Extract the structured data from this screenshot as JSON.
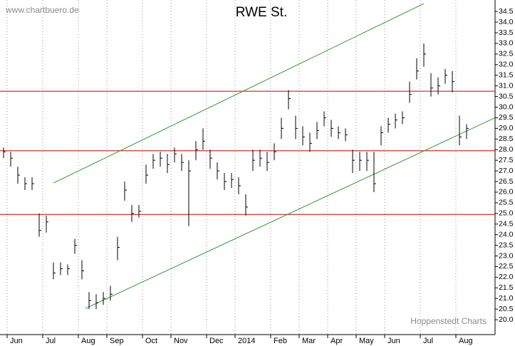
{
  "chart_data": {
    "type": "ohlc",
    "title": "RWE St.",
    "source": "www.chartbuero.de",
    "credit": "Hoppenstedt Charts",
    "color": "#000000",
    "categories": [
      null,
      "Jun",
      null,
      null,
      null,
      null,
      "Jul",
      null,
      null,
      null,
      null,
      "Aug",
      null,
      null,
      null,
      "Sep",
      null,
      null,
      null,
      null,
      "Oct",
      null,
      null,
      null,
      "Nov",
      null,
      null,
      null,
      null,
      "Dec",
      null,
      null,
      null,
      "2014",
      null,
      null,
      null,
      null,
      "Feb",
      null,
      null,
      null,
      "Mar",
      null,
      null,
      null,
      "Apr",
      null,
      null,
      null,
      "May",
      null,
      null,
      null,
      "Jun",
      null,
      null,
      null,
      null,
      "Jul",
      null,
      null,
      null,
      null,
      "Aug",
      null
    ],
    "high": [
      28.1,
      27.9,
      27.2,
      26.7,
      26.7,
      25.0,
      24.9,
      22.7,
      22.7,
      22.6,
      23.8,
      22.8,
      21.3,
      21.2,
      21.3,
      21.6,
      23.9,
      26.5,
      25.4,
      25.4,
      27.3,
      27.8,
      27.9,
      27.8,
      28.1,
      27.8,
      27.5,
      28.4,
      29.0,
      28.0,
      27.4,
      26.9,
      26.9,
      26.7,
      25.9,
      28.0,
      28.0,
      27.9,
      28.3,
      29.5,
      30.8,
      29.6,
      29.1,
      28.8,
      29.3,
      29.8,
      29.4,
      29.1,
      29.0,
      28.0,
      27.9,
      27.9,
      27.9,
      29.1,
      29.5,
      29.7,
      29.8,
      31.2,
      32.3,
      33.0,
      31.6,
      31.4,
      31.8,
      31.7,
      29.6,
      29.2
    ],
    "low": [
      27.6,
      27.2,
      26.4,
      26.1,
      26.1,
      23.9,
      24.1,
      21.9,
      22.1,
      22.1,
      23.1,
      21.9,
      20.5,
      20.5,
      20.7,
      20.9,
      22.8,
      25.6,
      24.6,
      24.8,
      26.4,
      27.1,
      27.2,
      26.9,
      27.4,
      27.0,
      24.4,
      27.5,
      28.0,
      27.1,
      26.6,
      26.1,
      26.2,
      25.9,
      24.9,
      27.0,
      27.2,
      27.0,
      27.5,
      28.5,
      29.9,
      28.5,
      28.2,
      27.9,
      28.5,
      29.1,
      28.6,
      28.5,
      28.4,
      26.9,
      27.0,
      27.0,
      26.0,
      28.2,
      28.8,
      29.0,
      29.2,
      30.2,
      31.3,
      31.9,
      30.5,
      30.6,
      31.1,
      30.7,
      28.2,
      28.5
    ],
    "close": [
      27.9,
      27.6,
      26.8,
      26.4,
      26.4,
      24.2,
      24.6,
      22.2,
      22.4,
      22.4,
      23.5,
      22.3,
      20.9,
      20.8,
      21.0,
      21.2,
      23.4,
      26.1,
      25.0,
      25.1,
      26.8,
      27.5,
      27.6,
      27.3,
      27.8,
      27.4,
      27.0,
      28.0,
      28.4,
      27.6,
      27.0,
      26.5,
      26.6,
      26.3,
      25.3,
      27.5,
      27.6,
      27.4,
      27.9,
      29.0,
      30.4,
      29.0,
      28.6,
      28.3,
      28.9,
      29.5,
      29.0,
      28.8,
      28.7,
      27.5,
      27.5,
      27.5,
      26.4,
      28.8,
      29.2,
      29.4,
      29.5,
      30.6,
      31.7,
      32.5,
      30.9,
      31.0,
      31.5,
      31.2,
      28.6,
      29.0
    ],
    "ylim": [
      19.3,
      35.04
    ],
    "yticks": [
      {
        "value": 20,
        "label": "20.0"
      },
      20.5,
      {
        "value": 21,
        "label": "21.0"
      },
      21.5,
      {
        "value": 22,
        "label": "22.0"
      },
      22.5,
      {
        "value": 23,
        "label": "23.0"
      },
      23.5,
      {
        "value": 24,
        "label": "24.0"
      },
      24.5,
      {
        "value": 25,
        "label": "25.0"
      },
      25.5,
      {
        "value": 26,
        "label": "26.0"
      },
      26.5,
      {
        "value": 27,
        "label": "27.0"
      },
      27.5,
      {
        "value": 28,
        "label": "28.0"
      },
      28.5,
      {
        "value": 29,
        "label": "29.0"
      },
      29.5,
      {
        "value": 30,
        "label": "30.0"
      },
      30.5,
      {
        "value": 31,
        "label": "31.0"
      },
      31.5,
      {
        "value": 32,
        "label": "32.0"
      },
      32.5,
      {
        "value": 33,
        "label": "33.0"
      },
      33.5,
      {
        "value": 34,
        "label": "34.0"
      },
      34.5
    ],
    "grid": true,
    "hlines": [
      {
        "color": "#cc0000",
        "value": 30.75
      },
      {
        "color": "#cc0000",
        "value": 27.95
      },
      {
        "color": "#cc0000",
        "value": 24.95
      }
    ],
    "trendlines": [
      {
        "color": "#2e9b2e",
        "x": [
          7,
          59
        ],
        "y": [
          26.43,
          34.87
        ]
      },
      {
        "color": "#2e9b2e",
        "x": [
          11.5,
          69
        ],
        "y": [
          20.53,
          29.5
        ]
      }
    ]
  }
}
